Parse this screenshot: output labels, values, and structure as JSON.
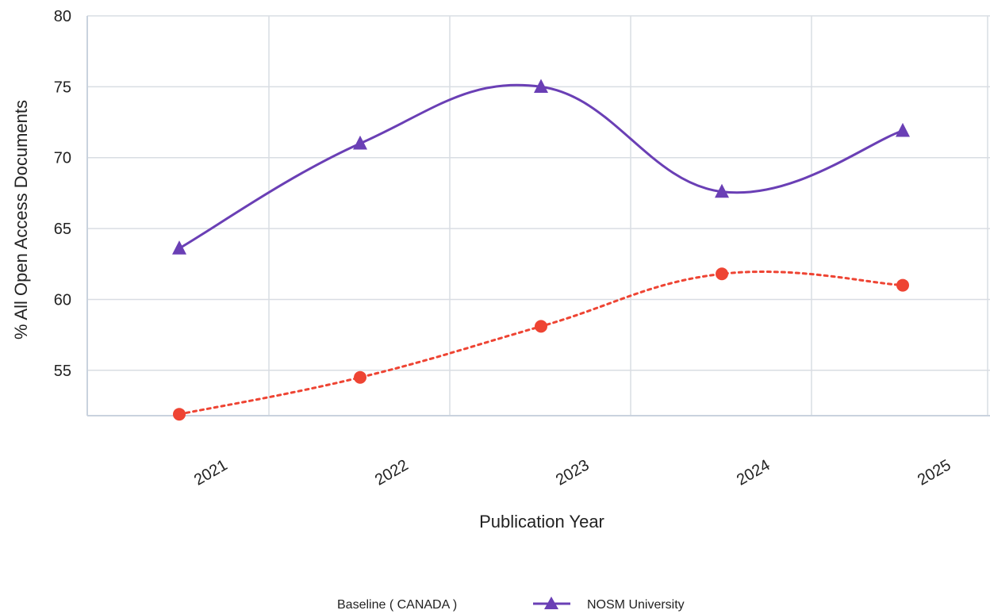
{
  "chart_data": {
    "type": "line",
    "xlabel": "Publication Year",
    "ylabel": "% All Open Access Documents",
    "categories": [
      "2021",
      "2022",
      "2023",
      "2024",
      "2025"
    ],
    "ylim": [
      51.8,
      80
    ],
    "yticks": [
      55,
      60,
      65,
      70,
      75,
      80
    ],
    "grid": true,
    "legend_position": "bottom-center",
    "series": [
      {
        "name": "Baseline ( CANADA )",
        "values": [
          51.9,
          54.5,
          58.1,
          61.8,
          61.0
        ],
        "color": "#ee4433",
        "line_style": "dotted",
        "marker": "circle"
      },
      {
        "name": "NOSM University",
        "values": [
          63.6,
          71.0,
          75.0,
          67.6,
          71.9
        ],
        "color": "#6a3fb5",
        "line_style": "solid",
        "marker": "triangle"
      }
    ]
  }
}
